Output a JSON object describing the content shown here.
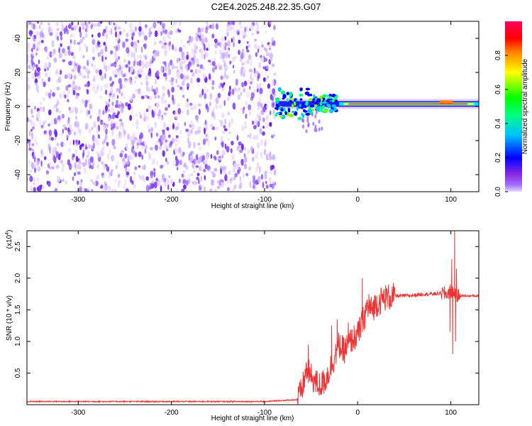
{
  "title": "C2E4.2025.248.22.35.G07",
  "colors": {
    "sigmap": [
      "#ffffff",
      "#e9d8ff",
      "#cdb2ff",
      "#8e58ff",
      "#6a1fe6",
      "#0000ff",
      "#00bfff",
      "#00ff99",
      "#00ff00",
      "#ffff00",
      "#ff8000",
      "#ff0000",
      "#ff00ff"
    ],
    "snr_line": "#ee3333"
  },
  "chart_data": [
    {
      "type": "heatmap",
      "title": "C2E4.2025.248.22.35.G07",
      "xlabel": "Height of straight line (km)",
      "ylabel": "Frequency (Hz)",
      "xlim": [
        -355,
        130
      ],
      "ylim": [
        -50,
        50
      ],
      "x_ticks": [
        -300,
        -200,
        -100,
        0,
        100
      ],
      "y_ticks": [
        -40,
        -20,
        0,
        20,
        40
      ],
      "noise_region_x": [
        -355,
        -88
      ],
      "ridge": {
        "x_start": -88,
        "x_end": 130,
        "frequency_hz": 1.5,
        "core_amplitude": 0.95
      },
      "colorbar": {
        "label": "Normalized spectral amplitude",
        "range": [
          0,
          1
        ],
        "ticks": [
          "0.0",
          "0.2",
          "0.4",
          "0.6",
          "0.8"
        ]
      }
    },
    {
      "type": "line",
      "xlabel": "Height of straight line (km)",
      "ylabel": "SNR (10 * v/v)",
      "y_exponent": "(x10",
      "y_exponent_power": "4",
      "xlim": [
        -355,
        130
      ],
      "ylim": [
        0,
        2.75
      ],
      "x_ticks": [
        -300,
        -200,
        -100,
        0,
        100
      ],
      "y_ticks": [
        "0.5",
        "1.0",
        "1.5",
        "2.0",
        "2.5"
      ],
      "y_ticks_values": [
        0.5,
        1.0,
        1.5,
        2.0,
        2.5
      ],
      "series": [
        {
          "x": [
            -355,
            -100,
            -65,
            -60,
            -55,
            -50,
            -45,
            -40,
            -35,
            -30,
            -25,
            -20,
            -15,
            -10,
            -5,
            0,
            5,
            10,
            15,
            20,
            25,
            30,
            35,
            40,
            50,
            60,
            70,
            80,
            90,
            95,
            100,
            103,
            106,
            110,
            120,
            130
          ],
          "y": [
            0.05,
            0.05,
            0.08,
            0.22,
            0.55,
            0.45,
            0.35,
            0.3,
            0.38,
            0.55,
            0.75,
            0.95,
            0.85,
            0.95,
            1.05,
            1.1,
            1.3,
            1.55,
            1.5,
            1.6,
            1.65,
            1.7,
            1.7,
            1.72,
            1.72,
            1.73,
            1.75,
            1.75,
            1.76,
            1.75,
            1.8,
            1.78,
            1.72,
            1.72,
            1.72,
            1.72
          ],
          "spikes": [
            [
              -53,
              0.95
            ],
            [
              -50,
              0.35
            ],
            [
              -36,
              0.5
            ],
            [
              -28,
              1.25
            ],
            [
              -22,
              1.35
            ],
            [
              -16,
              0.7
            ],
            [
              -10,
              1.3
            ],
            [
              -4,
              0.95
            ],
            [
              5,
              2.0
            ],
            [
              8,
              1.2
            ],
            [
              12,
              1.75
            ],
            [
              97,
              1.8
            ],
            [
              99,
              1.15
            ],
            [
              101,
              2.3
            ],
            [
              102,
              0.8
            ],
            [
              104,
              2.75
            ],
            [
              105,
              1.0
            ],
            [
              106,
              2.15
            ]
          ]
        }
      ]
    }
  ]
}
